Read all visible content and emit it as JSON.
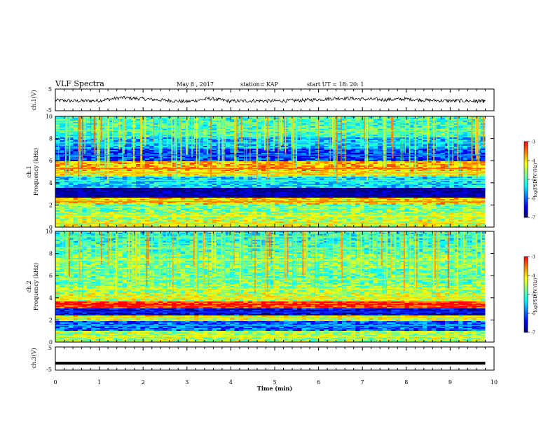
{
  "header": {
    "title": "VLF Spectra",
    "date": "May 8 , 2017",
    "station": "station= KAP",
    "start": "start  UT =   18: 20: 1"
  },
  "colors": {
    "background": "#ffffff",
    "axis": "#000000",
    "colormap": [
      "#000080",
      "#0000ff",
      "#0080ff",
      "#00ffff",
      "#80ff80",
      "#ffff00",
      "#ff8000",
      "#ff0000",
      "#ffffff"
    ]
  },
  "chart_data": [
    {
      "type": "line",
      "panel": "ch1-waveform",
      "ylabel": "ch.1(V)",
      "ylim": [
        -5,
        5
      ],
      "yticks": [
        "5",
        "-5"
      ],
      "x": [
        0,
        0.5,
        1,
        1.5,
        2,
        2.5,
        3,
        3.5,
        4,
        4.5,
        5,
        5.5,
        6,
        6.5,
        7,
        7.5,
        8,
        8.5,
        9,
        9.5,
        9.8
      ],
      "values": [
        -0.2,
        -0.5,
        -0.3,
        1.0,
        0.5,
        -0.2,
        -0.8,
        0.6,
        -0.6,
        -0.4,
        -0.5,
        -0.3,
        0.2,
        0.8,
        0.4,
        0.1,
        0.4,
        -0.2,
        -0.4,
        -0.5,
        -0.6
      ]
    },
    {
      "type": "heatmap",
      "panel": "ch1-spectrogram",
      "ylabel_top": "ch.1",
      "ylabel": "Frequency (kHz)",
      "ylim": [
        0,
        10
      ],
      "yticks": [
        "0",
        "2",
        "4",
        "6",
        "8",
        "10"
      ],
      "colorbar_label": "log(PSD)(V²/Hz)",
      "colorbar_ticks": [
        "-3",
        "-4",
        "-5",
        "-6",
        "-7"
      ],
      "colorbar_range": [
        -7,
        -3
      ],
      "bands_khz": [
        {
          "f": 0.3,
          "level": -4.3
        },
        {
          "f": 1.0,
          "level": -4.5
        },
        {
          "f": 1.8,
          "level": -4.8
        },
        {
          "f": 2.3,
          "level": -4.0
        },
        {
          "f": 3.0,
          "level": -7.0
        },
        {
          "f": 4.2,
          "level": -5.4
        },
        {
          "f": 4.9,
          "level": -4.2
        },
        {
          "f": 5.3,
          "level": -3.8
        },
        {
          "f": 6.5,
          "level": -6.2
        },
        {
          "f": 7.6,
          "level": -5.6
        },
        {
          "f": 8.7,
          "level": -5.0
        }
      ]
    },
    {
      "type": "heatmap",
      "panel": "ch2-spectrogram",
      "ylabel_top": "ch.2",
      "ylabel": "Frequency (kHz)",
      "ylim": [
        0,
        10
      ],
      "yticks": [
        "0",
        "2",
        "4",
        "6",
        "8",
        "10"
      ],
      "colorbar_label": "log(PSD)(V²/Hz)",
      "colorbar_ticks": [
        "-3",
        "-4",
        "-5",
        "-6",
        "-7"
      ],
      "colorbar_range": [
        -7,
        -3
      ],
      "bands_khz": [
        {
          "f": 0.5,
          "level": -4.5
        },
        {
          "f": 1.5,
          "level": -6.0
        },
        {
          "f": 2.2,
          "level": -4.3
        },
        {
          "f": 2.7,
          "level": -6.6
        },
        {
          "f": 3.4,
          "level": -3.2
        },
        {
          "f": 4.0,
          "level": -4.4
        },
        {
          "f": 4.8,
          "level": -4.6
        },
        {
          "f": 5.7,
          "level": -4.8
        },
        {
          "f": 7.4,
          "level": -4.7
        },
        {
          "f": 8.5,
          "level": -5.0
        },
        {
          "f": 9.5,
          "level": -5.2
        }
      ]
    },
    {
      "type": "line",
      "panel": "ch3-waveform",
      "ylabel": "ch.3(V)",
      "ylim": [
        -5,
        5
      ],
      "yticks": [
        "5",
        "-5"
      ],
      "x": [
        0,
        9.8
      ],
      "values": [
        -2.0,
        -2.0
      ]
    }
  ],
  "xaxis": {
    "label": "Time (min)",
    "ticks": [
      "0",
      "1",
      "2",
      "3",
      "4",
      "5",
      "6",
      "7",
      "8",
      "9",
      "10"
    ],
    "xlim": [
      0,
      10
    ]
  }
}
